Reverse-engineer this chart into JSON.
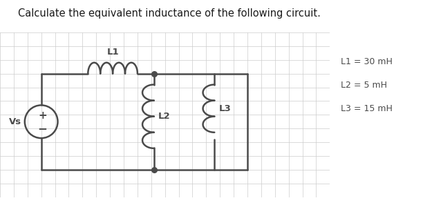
{
  "title": "Calculate the equivalent inductance of the following circuit.",
  "title_fontsize": 10.5,
  "title_color": "#1a1a1a",
  "title_fontweight": "normal",
  "bg_color": "#ffffff",
  "grid_color": "#cccccc",
  "line_color": "#4a4a4a",
  "line_width": 1.8,
  "legend_lines": [
    "L1 = 30 mH",
    "L2 = 5 mH",
    "L3 = 15 mH"
  ],
  "legend_fontsize": 9.0,
  "coil_n_loops_L1": 4,
  "coil_n_loops_L2": 4,
  "coil_n_loops_L3": 3,
  "vs_label": "Vs",
  "l1_label": "L1",
  "l2_label": "L2",
  "l3_label": "L3"
}
